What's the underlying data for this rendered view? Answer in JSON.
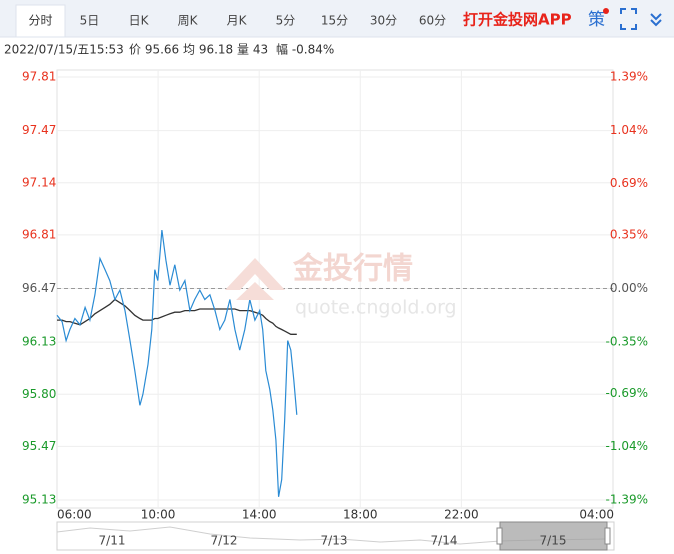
{
  "tabs": [
    "分时",
    "5日",
    "日K",
    "周K",
    "月K",
    "5分",
    "15分",
    "30分",
    "60分"
  ],
  "active_tab": 0,
  "app_link": "打开金投网APP",
  "strategy": "策",
  "info": [
    "2022/07/15/五15:53",
    "价 95.66",
    "均 96.18",
    "量 43",
    "幅 -0.84%"
  ],
  "watermark": {
    "name": "金投行情",
    "url": "quote.cngold.org"
  },
  "navigator": {
    "labels": [
      "7/11",
      "7/12",
      "7/13",
      "7/14",
      "7/15"
    ]
  },
  "chart_data": {
    "type": "line",
    "x": [
      6.0,
      6.2,
      6.36,
      6.51,
      6.71,
      6.91,
      7.11,
      7.3,
      7.5,
      7.7,
      7.9,
      8.09,
      8.29,
      8.49,
      8.69,
      8.89,
      9.08,
      9.28,
      9.4,
      9.6,
      9.75,
      9.87,
      9.99,
      10.15,
      10.31,
      10.47,
      10.66,
      10.86,
      11.06,
      11.26,
      11.45,
      11.65,
      11.85,
      12.05,
      12.25,
      12.44,
      12.64,
      12.84,
      13.04,
      13.23,
      13.43,
      13.63,
      13.83,
      14.02,
      14.14,
      14.26,
      14.42,
      14.54,
      14.66,
      14.77,
      14.89,
      15.01,
      15.13,
      15.25,
      15.37,
      15.49
    ],
    "series": [
      {
        "name": "价",
        "color": "#2a8bd4",
        "values": [
          96.3,
          96.26,
          96.14,
          96.21,
          96.28,
          96.24,
          96.35,
          96.27,
          96.43,
          96.66,
          96.59,
          96.52,
          96.4,
          96.46,
          96.33,
          96.14,
          95.95,
          95.73,
          95.8,
          95.99,
          96.21,
          96.59,
          96.52,
          96.84,
          96.65,
          96.49,
          96.62,
          96.46,
          96.52,
          96.33,
          96.4,
          96.46,
          96.4,
          96.43,
          96.33,
          96.21,
          96.27,
          96.4,
          96.21,
          96.08,
          96.21,
          96.4,
          96.27,
          96.33,
          96.21,
          95.95,
          95.83,
          95.7,
          95.51,
          95.15,
          95.26,
          95.64,
          96.14,
          96.08,
          95.89,
          95.67
        ]
      },
      {
        "name": "均",
        "color": "#333333",
        "values": [
          96.27,
          96.27,
          96.26,
          96.26,
          96.25,
          96.24,
          96.26,
          96.28,
          96.31,
          96.33,
          96.35,
          96.37,
          96.4,
          96.38,
          96.36,
          96.33,
          96.3,
          96.28,
          96.27,
          96.27,
          96.27,
          96.28,
          96.28,
          96.29,
          96.3,
          96.31,
          96.32,
          96.32,
          96.33,
          96.33,
          96.33,
          96.34,
          96.34,
          96.34,
          96.34,
          96.34,
          96.34,
          96.34,
          96.34,
          96.33,
          96.33,
          96.33,
          96.32,
          96.31,
          96.3,
          96.28,
          96.26,
          96.25,
          96.23,
          96.22,
          96.21,
          96.2,
          96.19,
          96.18,
          96.18,
          96.18
        ]
      }
    ],
    "xlim": [
      6,
      28
    ],
    "xticks": [
      {
        "value": 6,
        "label": "06:00"
      },
      {
        "value": 10,
        "label": "10:00"
      },
      {
        "value": 14,
        "label": "14:00"
      },
      {
        "value": 18,
        "label": "18:00"
      },
      {
        "value": 22,
        "label": "22:00"
      },
      {
        "value": 28,
        "label": "04:00"
      }
    ],
    "ylim": [
      95.13,
      97.81
    ],
    "yticks": [
      97.81,
      97.47,
      97.14,
      96.81,
      96.47,
      96.13,
      {
        "value": 95.8,
        "label": "95.80"
      },
      95.47,
      95.13
    ],
    "y2lim": [
      -1.39,
      1.39
    ],
    "y2ticks": [
      {
        "value": 1.39,
        "label": "1.39%"
      },
      {
        "value": 1.04,
        "label": "1.04%"
      },
      {
        "value": 0.69,
        "label": "0.69%"
      },
      {
        "value": 0.35,
        "label": "0.35%"
      },
      {
        "value": 0,
        "label": "0.00%"
      },
      {
        "value": -0.35,
        "label": "-0.35%"
      },
      {
        "value": -0.69,
        "label": "-0.69%"
      },
      {
        "value": -1.04,
        "label": "-1.04%"
      },
      {
        "value": -1.39,
        "label": "-1.39%"
      }
    ],
    "baseline": 96.47,
    "up_color": "#e8321e",
    "down_color": "#1a9a2a",
    "flat_color": "#555555",
    "grid": true
  }
}
